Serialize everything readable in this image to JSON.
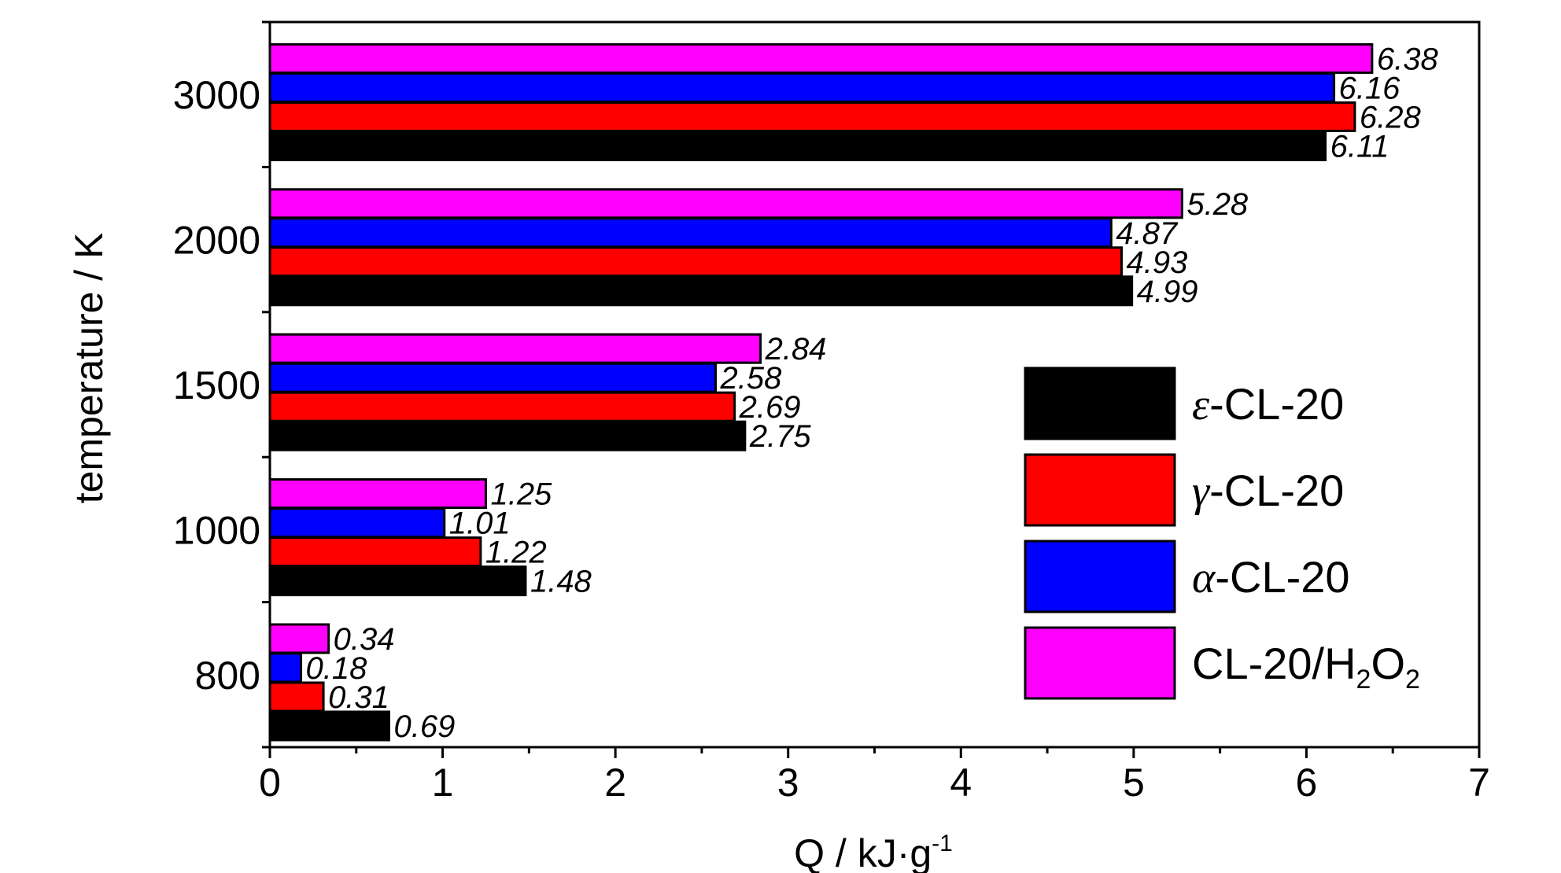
{
  "chart_data": {
    "type": "bar",
    "orientation": "horizontal",
    "categories": [
      "800",
      "1000",
      "1500",
      "2000",
      "3000"
    ],
    "series": [
      {
        "name": "ε-CL-20",
        "greek": "ε",
        "base": "-CL-20",
        "color": "#000000",
        "values": [
          0.69,
          1.48,
          2.75,
          4.99,
          6.11
        ]
      },
      {
        "name": "γ-CL-20",
        "greek": "γ",
        "base": "-CL-20",
        "color": "#ff0000",
        "values": [
          0.31,
          1.22,
          2.69,
          4.93,
          6.28
        ]
      },
      {
        "name": "α-CL-20",
        "greek": "α",
        "base": "-CL-20",
        "color": "#0000ff",
        "values": [
          0.18,
          1.01,
          2.58,
          4.87,
          6.16
        ]
      },
      {
        "name": "CL-20/H2O2",
        "greek": "",
        "base": "CL-20/H2O2",
        "color": "#ff00ff",
        "values": [
          0.34,
          1.25,
          2.84,
          5.28,
          6.38
        ]
      }
    ],
    "data_labels": [
      [
        "0.69",
        "1.48",
        "2.75",
        "4.99",
        "6.11"
      ],
      [
        "0.31",
        "1.22",
        "2.69",
        "4.93",
        "6.28"
      ],
      [
        "0.18",
        "1.01",
        "2.58",
        "4.87",
        "6.16"
      ],
      [
        "0.34",
        "1.25",
        "2.84",
        "5.28",
        "6.38"
      ]
    ],
    "xlabel": {
      "main": "Q / kJ·g",
      "sup": "-1"
    },
    "ylabel": "temperature / K",
    "xlim": [
      0,
      7
    ],
    "xticks": [
      "0",
      "1",
      "2",
      "3",
      "4",
      "5",
      "6",
      "7"
    ],
    "grid": false,
    "legend_position": "right-middle"
  }
}
